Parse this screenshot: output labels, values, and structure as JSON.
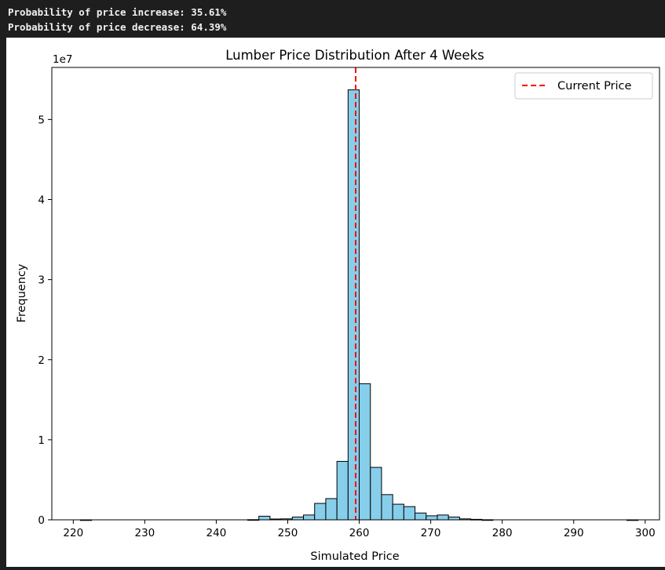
{
  "console": {
    "line1": "Probability of price increase: 35.61%",
    "line2": "Probability of price decrease: 64.39%"
  },
  "chart_data": {
    "type": "bar",
    "title": "Lumber Price Distribution After 4 Weeks",
    "xlabel": "Simulated Price",
    "ylabel": "Frequency",
    "y_scale_label": "1e7",
    "xlim": [
      217,
      302
    ],
    "ylim": [
      0,
      5.65
    ],
    "x_ticks": [
      220,
      230,
      240,
      250,
      260,
      270,
      280,
      290,
      300
    ],
    "y_ticks": [
      0,
      1,
      2,
      3,
      4,
      5
    ],
    "bar_color": "#87ceeb",
    "bar_edge_color": "#000000",
    "bin_edges": [
      221,
      222.56,
      224.12,
      225.68,
      227.24,
      228.8,
      230.36,
      231.92,
      233.48,
      235.04,
      236.6,
      238.16,
      239.72,
      241.28,
      242.84,
      244.4,
      245.96,
      247.52,
      249.08,
      250.64,
      252.2,
      253.76,
      255.32,
      256.88,
      258.44,
      260.0,
      261.56,
      263.12,
      264.68,
      266.24,
      267.8,
      269.36,
      270.92,
      272.48,
      274.04,
      275.6,
      277.16,
      278.72,
      280.28,
      281.84,
      283.4,
      284.96,
      286.52,
      288.08,
      289.64,
      291.2,
      292.76,
      294.32,
      295.88,
      297.44,
      299.0
    ],
    "values": [
      0.001,
      0,
      0,
      0,
      0,
      0,
      0,
      0,
      0,
      0,
      0,
      0,
      0,
      0,
      0,
      0.02,
      0.45,
      0.1,
      0.12,
      0.35,
      0.6,
      2.05,
      2.65,
      7.3,
      53.7,
      17.0,
      6.55,
      3.15,
      1.95,
      1.65,
      0.85,
      0.5,
      0.6,
      0.35,
      0.12,
      0.06,
      0.01,
      0,
      0,
      0,
      0,
      0,
      0,
      0,
      0,
      0,
      0,
      0,
      0,
      0.001
    ],
    "values_unit": "1e6",
    "reference_line": {
      "x": 259.5,
      "label": "Current Price",
      "color": "#ff0000",
      "style": "dashed"
    },
    "legend_position": "top-right",
    "grid": false
  }
}
